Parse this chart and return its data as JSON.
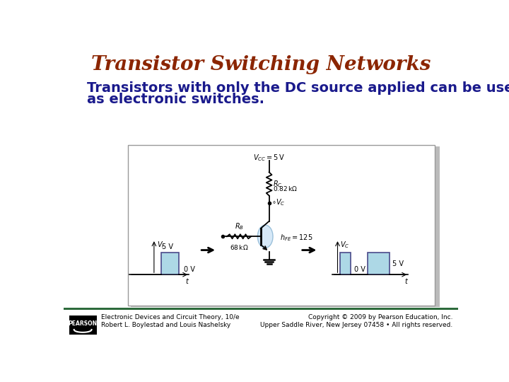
{
  "title": "Transistor Switching Networks",
  "title_color": "#8B2500",
  "title_fontsize": 20,
  "body_line1": "Transistors with only the DC source applied can be used",
  "body_line2": "as electronic switches.",
  "body_color": "#1a1a8c",
  "body_fontsize": 14,
  "footer_left_line1": "Electronic Devices and Circuit Theory, 10/e",
  "footer_left_line2": "Robert L. Boylestad and Louis Nashelsky",
  "footer_right_line1": "Copyright © 2009 by Pearson Education, Inc.",
  "footer_right_line2": "Upper Saddle River, New Jersey 07458 • All rights reserved.",
  "footer_fontsize": 6.5,
  "bg_color": "#ffffff",
  "footer_bar_color": "#2d6b3c",
  "waveform_fill": "#add8e6",
  "waveform_edge": "#4a4a8a",
  "circuit_bg": "#f0f0f0",
  "circuit_edge": "#aaaaaa"
}
